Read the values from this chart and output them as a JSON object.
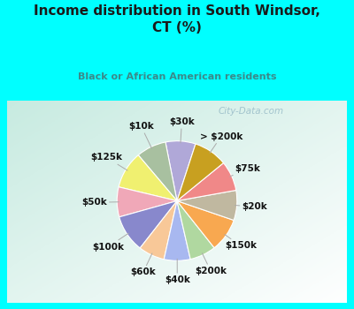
{
  "title": "Income distribution in South Windsor,\nCT (%)",
  "subtitle": "Black or African American residents",
  "bg_color": "#00FFFF",
  "labels": [
    "$30k",
    "$10k",
    "$125k",
    "$50k",
    "$100k",
    "$60k",
    "$40k",
    "$200k",
    "$150k",
    "$20k",
    "$75k",
    "> $200k"
  ],
  "values": [
    8,
    8,
    10,
    8,
    10,
    7,
    7,
    7,
    9,
    8,
    8,
    9
  ],
  "colors": [
    "#b0a8d8",
    "#a8c0a0",
    "#f0f070",
    "#f0a8b8",
    "#8888cc",
    "#f8c898",
    "#a8b8f0",
    "#b0d8a0",
    "#f8a850",
    "#c0b8a0",
    "#f08888",
    "#c8a020"
  ],
  "watermark": "City-Data.com",
  "title_color": "#1a1a1a",
  "subtitle_color": "#3a8a8a",
  "label_fontsize": 7.5,
  "startangle": 72
}
